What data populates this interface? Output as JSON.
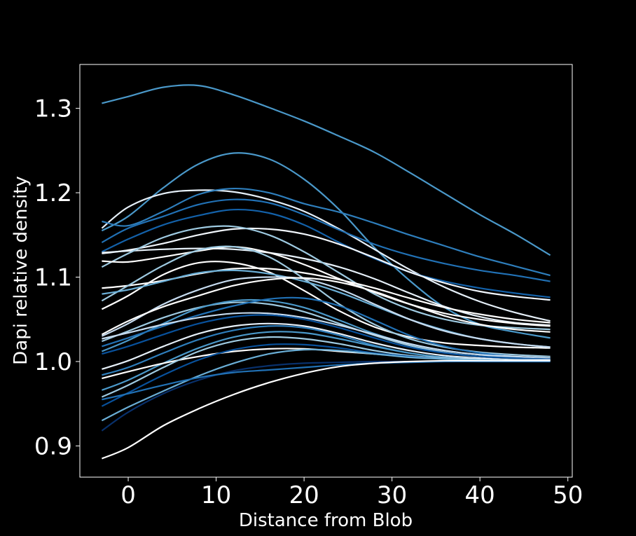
{
  "chart_data": {
    "type": "line",
    "title": "",
    "xlabel": "Distance from Blob",
    "ylabel": "Dapi relative density",
    "xlim": [
      -5.5,
      50.5
    ],
    "ylim": [
      0.863,
      1.352
    ],
    "xticks": [
      0,
      10,
      20,
      30,
      40,
      50
    ],
    "yticks": [
      0.9,
      1.0,
      1.1,
      1.2,
      1.3
    ],
    "xtick_labels": [
      "0",
      "10",
      "20",
      "30",
      "40",
      "50"
    ],
    "ytick_labels": [
      "0.9",
      "1.0",
      "1.1",
      "1.2",
      "1.3"
    ],
    "grid": false,
    "legend": "none",
    "background": "#000000",
    "axis_color": "#ffffff",
    "color_scale": "Blues (white to dark blue)",
    "series": [
      {
        "color": "#4a98c9",
        "x": [
          -3,
          0,
          4,
          8,
          12,
          16,
          20,
          24,
          28,
          32,
          36,
          40,
          44,
          48
        ],
        "y": [
          1.306,
          1.314,
          1.325,
          1.327,
          1.316,
          1.301,
          1.285,
          1.267,
          1.248,
          1.224,
          1.199,
          1.174,
          1.151,
          1.126
        ]
      },
      {
        "color": "#4a98c9",
        "x": [
          -3,
          0,
          4,
          8,
          12,
          16,
          20,
          24,
          28,
          32,
          36,
          40,
          44,
          48
        ],
        "y": [
          1.155,
          1.172,
          1.206,
          1.234,
          1.247,
          1.24,
          1.216,
          1.18,
          1.135,
          1.096,
          1.064,
          1.044,
          1.035,
          1.028
        ]
      },
      {
        "color": "#e6f0f9",
        "x": [
          -3,
          0,
          4,
          8,
          12,
          16,
          20,
          24,
          28,
          32,
          36,
          40,
          44,
          48
        ],
        "y": [
          1.158,
          1.183,
          1.199,
          1.203,
          1.201,
          1.192,
          1.178,
          1.157,
          1.133,
          1.109,
          1.088,
          1.071,
          1.058,
          1.048
        ]
      },
      {
        "color": "#2e7ebc",
        "x": [
          -3,
          0,
          4,
          8,
          12,
          16,
          20,
          24,
          28,
          32,
          36,
          40,
          44,
          48
        ],
        "y": [
          1.166,
          1.161,
          1.178,
          1.198,
          1.205,
          1.2,
          1.187,
          1.177,
          1.164,
          1.15,
          1.137,
          1.124,
          1.113,
          1.102
        ]
      },
      {
        "color": "#2171b5",
        "x": [
          -3,
          0,
          4,
          8,
          12,
          16,
          20,
          24,
          28,
          32,
          36,
          40,
          44,
          48
        ],
        "y": [
          1.141,
          1.158,
          1.172,
          1.186,
          1.192,
          1.188,
          1.174,
          1.156,
          1.139,
          1.126,
          1.116,
          1.108,
          1.102,
          1.095
        ]
      },
      {
        "color": "#1361a9",
        "x": [
          -3,
          0,
          4,
          8,
          12,
          16,
          20,
          24,
          28,
          32,
          36,
          40,
          44,
          48
        ],
        "y": [
          1.13,
          1.145,
          1.162,
          1.173,
          1.18,
          1.176,
          1.162,
          1.141,
          1.122,
          1.106,
          1.095,
          1.087,
          1.081,
          1.076
        ]
      },
      {
        "color": "#f2f7fd",
        "x": [
          -3,
          0,
          4,
          8,
          12,
          16,
          20,
          24,
          28,
          32,
          36,
          40,
          44,
          48
        ],
        "y": [
          1.128,
          1.132,
          1.14,
          1.15,
          1.157,
          1.157,
          1.151,
          1.139,
          1.123,
          1.106,
          1.093,
          1.083,
          1.077,
          1.073
        ]
      },
      {
        "color": "#e6f0f9",
        "x": [
          -3,
          0,
          4,
          8,
          12,
          16,
          20,
          24,
          28,
          32,
          36,
          40,
          44,
          48
        ],
        "y": [
          1.129,
          1.131,
          1.133,
          1.134,
          1.133,
          1.129,
          1.122,
          1.112,
          1.098,
          1.081,
          1.065,
          1.053,
          1.046,
          1.043
        ]
      },
      {
        "color": "#9ecae1",
        "x": [
          -3,
          0,
          4,
          8,
          12,
          16,
          20,
          24,
          28,
          32,
          36,
          40,
          44,
          48
        ],
        "y": [
          1.112,
          1.128,
          1.147,
          1.158,
          1.16,
          1.15,
          1.13,
          1.105,
          1.08,
          1.062,
          1.05,
          1.043,
          1.04,
          1.038
        ]
      },
      {
        "color": "#ffffff",
        "x": [
          -3,
          0,
          4,
          8,
          12,
          16,
          20,
          24,
          28,
          32,
          36,
          40,
          44,
          48
        ],
        "y": [
          1.119,
          1.118,
          1.124,
          1.131,
          1.136,
          1.129,
          1.115,
          1.098,
          1.082,
          1.068,
          1.057,
          1.05,
          1.045,
          1.042
        ]
      },
      {
        "color": "#ffffff",
        "x": [
          -3,
          0,
          4,
          8,
          12,
          16,
          20,
          24,
          28,
          32,
          36,
          40,
          44,
          48
        ],
        "y": [
          1.087,
          1.09,
          1.096,
          1.104,
          1.11,
          1.11,
          1.105,
          1.097,
          1.087,
          1.075,
          1.064,
          1.056,
          1.05,
          1.046
        ]
      },
      {
        "color": "#ffffff",
        "x": [
          -3,
          0,
          4,
          8,
          12,
          16,
          20,
          24,
          28,
          32,
          36,
          40,
          44,
          48
        ],
        "y": [
          1.062,
          1.078,
          1.103,
          1.117,
          1.117,
          1.106,
          1.084,
          1.06,
          1.041,
          1.029,
          1.022,
          1.019,
          1.017,
          1.016
        ]
      },
      {
        "color": "#9ecae1",
        "x": [
          -3,
          0,
          4,
          8,
          12,
          16,
          20,
          24,
          28,
          32,
          36,
          40,
          44,
          48
        ],
        "y": [
          1.072,
          1.09,
          1.114,
          1.132,
          1.136,
          1.124,
          1.098,
          1.068,
          1.044,
          1.027,
          1.017,
          1.011,
          1.008,
          1.006
        ]
      },
      {
        "color": "#6aaed6",
        "x": [
          -3,
          0,
          4,
          8,
          12,
          16,
          20,
          24,
          28,
          32,
          36,
          40,
          44,
          48
        ],
        "y": [
          1.08,
          1.085,
          1.095,
          1.105,
          1.108,
          1.104,
          1.095,
          1.082,
          1.066,
          1.05,
          1.037,
          1.027,
          1.021,
          1.017
        ]
      },
      {
        "color": "#c6dbef",
        "x": [
          -3,
          0,
          4,
          8,
          12,
          16,
          20,
          24,
          28,
          32,
          36,
          40,
          44,
          48
        ],
        "y": [
          1.03,
          1.045,
          1.068,
          1.085,
          1.097,
          1.1,
          1.098,
          1.086,
          1.068,
          1.05,
          1.036,
          1.027,
          1.021,
          1.017
        ]
      },
      {
        "color": "#ffffff",
        "x": [
          -3,
          0,
          4,
          8,
          12,
          16,
          20,
          24,
          28,
          32,
          36,
          40,
          44,
          48
        ],
        "y": [
          1.032,
          1.048,
          1.065,
          1.078,
          1.09,
          1.097,
          1.099,
          1.094,
          1.083,
          1.068,
          1.054,
          1.044,
          1.038,
          1.035
        ]
      },
      {
        "color": "#9ecae1",
        "x": [
          -3,
          0,
          4,
          8,
          12,
          16,
          20,
          24,
          28,
          32,
          36,
          40,
          44,
          48
        ],
        "y": [
          1.024,
          1.036,
          1.052,
          1.064,
          1.07,
          1.068,
          1.059,
          1.045,
          1.031,
          1.019,
          1.011,
          1.006,
          1.004,
          1.003
        ]
      },
      {
        "color": "#4a98c9",
        "x": [
          -3,
          0,
          4,
          8,
          12,
          16,
          20,
          24,
          28,
          32,
          36,
          40,
          44,
          48
        ],
        "y": [
          1.012,
          1.025,
          1.045,
          1.063,
          1.072,
          1.072,
          1.064,
          1.049,
          1.033,
          1.021,
          1.013,
          1.008,
          1.005,
          1.004
        ]
      },
      {
        "color": "#2171b5",
        "x": [
          -3,
          0,
          4,
          8,
          12,
          16,
          20,
          24,
          28,
          32,
          36,
          40,
          44,
          48
        ],
        "y": [
          1.018,
          1.028,
          1.042,
          1.055,
          1.066,
          1.074,
          1.075,
          1.066,
          1.049,
          1.031,
          1.018,
          1.01,
          1.006,
          1.004
        ]
      },
      {
        "color": "#c6dbef",
        "x": [
          -3,
          0,
          4,
          8,
          12,
          16,
          20,
          24,
          28,
          32,
          36,
          40,
          44,
          48
        ],
        "y": [
          1.027,
          1.034,
          1.044,
          1.052,
          1.057,
          1.057,
          1.052,
          1.043,
          1.032,
          1.021,
          1.013,
          1.008,
          1.006,
          1.004
        ]
      },
      {
        "color": "#08519c",
        "x": [
          -3,
          0,
          4,
          8,
          12,
          16,
          20,
          24,
          28,
          32,
          36,
          40,
          44,
          48
        ],
        "y": [
          1.009,
          1.018,
          1.032,
          1.045,
          1.053,
          1.055,
          1.05,
          1.04,
          1.028,
          1.017,
          1.01,
          1.006,
          1.004,
          1.003
        ]
      },
      {
        "color": "#e6f0f9",
        "x": [
          -3,
          0,
          4,
          8,
          12,
          16,
          20,
          24,
          28,
          32,
          36,
          40,
          44,
          48
        ],
        "y": [
          0.991,
          1.001,
          1.018,
          1.033,
          1.042,
          1.045,
          1.042,
          1.033,
          1.022,
          1.013,
          1.007,
          1.004,
          1.002,
          1.002
        ]
      },
      {
        "color": "#2e7ebc",
        "x": [
          -3,
          0,
          4,
          8,
          12,
          16,
          20,
          24,
          28,
          32,
          36,
          40,
          44,
          48
        ],
        "y": [
          0.984,
          0.993,
          1.01,
          1.026,
          1.037,
          1.042,
          1.04,
          1.031,
          1.019,
          1.01,
          1.005,
          1.003,
          1.002,
          1.001
        ]
      },
      {
        "color": "#4a98c9",
        "x": [
          -3,
          0,
          4,
          8,
          12,
          16,
          20,
          24,
          28,
          32,
          36,
          40,
          44,
          48
        ],
        "y": [
          0.966,
          0.978,
          0.998,
          1.016,
          1.029,
          1.035,
          1.034,
          1.027,
          1.018,
          1.01,
          1.005,
          1.003,
          1.002,
          1.001
        ]
      },
      {
        "color": "#ffffff",
        "x": [
          -3,
          0,
          4,
          8,
          12,
          16,
          20,
          24,
          28,
          32,
          36,
          40,
          44,
          48
        ],
        "y": [
          0.98,
          0.988,
          0.998,
          1.006,
          1.012,
          1.015,
          1.015,
          1.012,
          1.009,
          1.006,
          1.004,
          1.003,
          1.002,
          1.002
        ]
      },
      {
        "color": "#9ecae1",
        "x": [
          -3,
          0,
          4,
          8,
          12,
          16,
          20,
          24,
          28,
          32,
          36,
          40,
          44,
          48
        ],
        "y": [
          0.958,
          0.972,
          0.993,
          1.012,
          1.024,
          1.029,
          1.027,
          1.021,
          1.013,
          1.007,
          1.004,
          1.002,
          1.001,
          1.001
        ]
      },
      {
        "color": "#08519c",
        "x": [
          -3,
          0,
          4,
          8,
          12,
          16,
          20,
          24,
          28,
          32,
          36,
          40,
          44,
          48
        ],
        "y": [
          0.947,
          0.963,
          0.984,
          1.002,
          1.014,
          1.02,
          1.02,
          1.016,
          1.01,
          1.006,
          1.003,
          1.002,
          1.001,
          1.001
        ]
      },
      {
        "color": "#6aaed6",
        "x": [
          -3,
          0,
          4,
          8,
          12,
          16,
          20,
          24,
          28,
          32,
          36,
          40,
          44,
          48
        ],
        "y": [
          0.93,
          0.946,
          0.965,
          0.983,
          0.998,
          1.009,
          1.014,
          1.013,
          1.009,
          1.005,
          1.003,
          1.002,
          1.001,
          1.001
        ]
      },
      {
        "color": "#08306b",
        "x": [
          -3,
          0,
          4,
          8,
          12,
          16,
          20,
          24,
          28,
          32,
          36,
          40,
          44,
          48
        ],
        "y": [
          0.918,
          0.94,
          0.962,
          0.978,
          0.989,
          0.995,
          0.998,
          0.999,
          1.0,
          1.0,
          1.0,
          1.0,
          1.0,
          1.0
        ]
      },
      {
        "color": "#2171b5",
        "x": [
          -3,
          0,
          4,
          8,
          12,
          16,
          20,
          24,
          28,
          32,
          36,
          40,
          44,
          48
        ],
        "y": [
          0.955,
          0.962,
          0.972,
          0.981,
          0.987,
          0.99,
          0.993,
          0.996,
          0.998,
          0.999,
          1.0,
          1.0,
          1.0,
          1.0
        ]
      },
      {
        "color": "#ffffff",
        "x": [
          -3,
          0,
          4,
          8,
          12,
          16,
          20,
          24,
          28,
          32,
          36,
          40,
          44,
          48
        ],
        "y": [
          0.885,
          0.898,
          0.924,
          0.944,
          0.961,
          0.975,
          0.986,
          0.994,
          0.998,
          1.0,
          1.001,
          1.001,
          1.001,
          1.001
        ]
      }
    ]
  }
}
